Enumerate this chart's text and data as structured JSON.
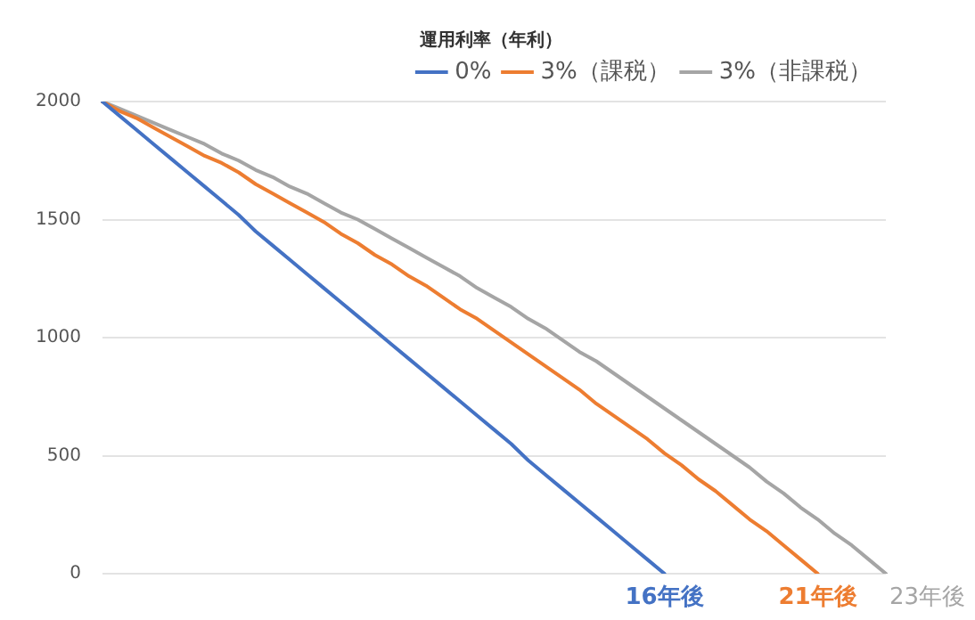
{
  "chart_data": {
    "type": "line",
    "legend_title": "運用利率（年利）",
    "legend": "top right",
    "grid": "y",
    "tick_labels": "y",
    "marker": "none",
    "line_style": "solid",
    "categories": [
      null,
      null,
      null,
      null,
      null,
      null,
      null,
      null,
      null,
      null,
      null,
      null,
      null,
      null,
      null,
      null,
      null,
      null,
      null,
      null,
      null,
      null,
      null,
      null,
      null,
      null,
      null,
      null,
      null,
      null,
      null,
      null,
      null,
      null,
      null,
      null,
      null,
      null,
      null,
      null,
      null,
      null,
      null,
      null,
      null,
      null,
      null
    ],
    "ylim": [
      0,
      2000
    ],
    "yticks": [
      0,
      500,
      1000,
      1500,
      2000
    ],
    "series": [
      {
        "name": "0%",
        "color": "#4472c4",
        "values": [
          2000,
          1940,
          1880,
          1820,
          1760,
          1700,
          1640,
          1580,
          1520,
          1450,
          1390,
          1330,
          1270,
          1210,
          1150,
          1090,
          1030,
          970,
          910,
          850,
          790,
          730,
          670,
          610,
          550,
          480,
          420,
          360,
          300,
          240,
          180,
          120,
          60,
          0,
          null,
          null,
          null,
          null,
          null,
          null,
          null,
          null,
          null,
          null,
          null,
          null,
          null
        ]
      },
      {
        "name": "3%（課税）",
        "color": "#ed7d31",
        "values": [
          2000,
          1960,
          1930,
          1890,
          1850,
          1810,
          1770,
          1740,
          1700,
          1650,
          1610,
          1570,
          1530,
          1490,
          1440,
          1400,
          1350,
          1310,
          1260,
          1220,
          1170,
          1120,
          1080,
          1030,
          980,
          930,
          880,
          830,
          780,
          720,
          670,
          620,
          570,
          510,
          460,
          400,
          350,
          290,
          230,
          180,
          120,
          60,
          0,
          null,
          null,
          null,
          null
        ]
      },
      {
        "name": "3%（非課税）",
        "color": "#a5a5a5",
        "values": [
          2000,
          1970,
          1940,
          1910,
          1880,
          1850,
          1820,
          1780,
          1750,
          1710,
          1680,
          1640,
          1610,
          1570,
          1530,
          1500,
          1460,
          1420,
          1380,
          1340,
          1300,
          1260,
          1210,
          1170,
          1130,
          1080,
          1040,
          990,
          940,
          900,
          850,
          800,
          750,
          700,
          650,
          600,
          550,
          500,
          450,
          390,
          340,
          280,
          230,
          170,
          120,
          60,
          0
        ]
      }
    ],
    "annotations": [
      "16年後",
      "21年後",
      "23年後"
    ]
  }
}
